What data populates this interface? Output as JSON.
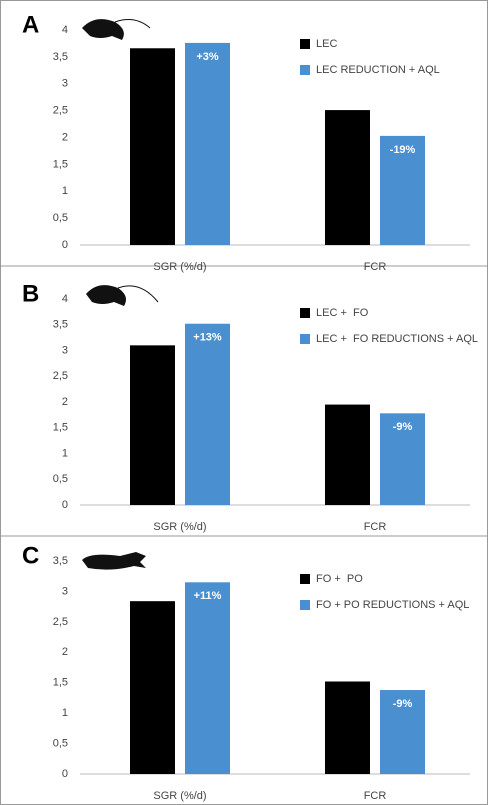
{
  "chart_data": [
    {
      "type": "bar",
      "panel_label": "A",
      "categories": [
        "SGR (%/d)",
        "FCR"
      ],
      "series": [
        {
          "name": "LEC",
          "color": "#000000",
          "values": [
            3.66,
            2.51
          ]
        },
        {
          "name": "LEC REDUCTION + AQL",
          "color": "#4a8fd0",
          "values": [
            3.76,
            2.03
          ]
        }
      ],
      "annotations": [
        "+3%",
        "-19%"
      ],
      "ylim": [
        0,
        4
      ],
      "yticks": [
        0,
        {
          "value": 0.5,
          "label": "0,5"
        },
        1,
        {
          "value": 1.5,
          "label": "1,5"
        },
        2,
        {
          "value": 2.5,
          "label": "2,5"
        },
        3,
        {
          "value": 3.5,
          "label": "3,5"
        },
        4
      ],
      "grid": false
    },
    {
      "type": "bar",
      "panel_label": "B",
      "categories": [
        "SGR (%/d)",
        "FCR"
      ],
      "series": [
        {
          "name": "LEC +  FO",
          "color": "#000000",
          "values": [
            3.1,
            1.95
          ]
        },
        {
          "name": "LEC +  FO REDUCTIONS + AQL",
          "color": "#4a8fd0",
          "values": [
            3.52,
            1.78
          ]
        }
      ],
      "annotations": [
        "+13%",
        "-9%"
      ],
      "ylim": [
        0,
        4
      ],
      "yticks": [
        0,
        {
          "value": 0.5,
          "label": "0,5"
        },
        1,
        {
          "value": 1.5,
          "label": "1,5"
        },
        2,
        {
          "value": 2.5,
          "label": "2,5"
        },
        3,
        {
          "value": 3.5,
          "label": "3,5"
        },
        4
      ],
      "grid": false
    },
    {
      "type": "bar",
      "panel_label": "C",
      "categories": [
        "SGR (%/d)",
        "FCR"
      ],
      "series": [
        {
          "name": "FO +  PO",
          "color": "#000000",
          "values": [
            2.84,
            1.52
          ]
        },
        {
          "name": "FO + PO REDUCTIONS + AQL",
          "color": "#4a8fd0",
          "values": [
            3.15,
            1.38
          ]
        }
      ],
      "annotations": [
        "+11%",
        "-9%"
      ],
      "ylim": [
        0,
        3.5
      ],
      "yticks": [
        0,
        {
          "value": 0.5,
          "label": "0,5"
        },
        1,
        {
          "value": 1.5,
          "label": "1,5"
        },
        2,
        {
          "value": 2.5,
          "label": "2,5"
        },
        3,
        {
          "value": 3.5,
          "label": "3,5"
        }
      ],
      "grid": false
    }
  ]
}
